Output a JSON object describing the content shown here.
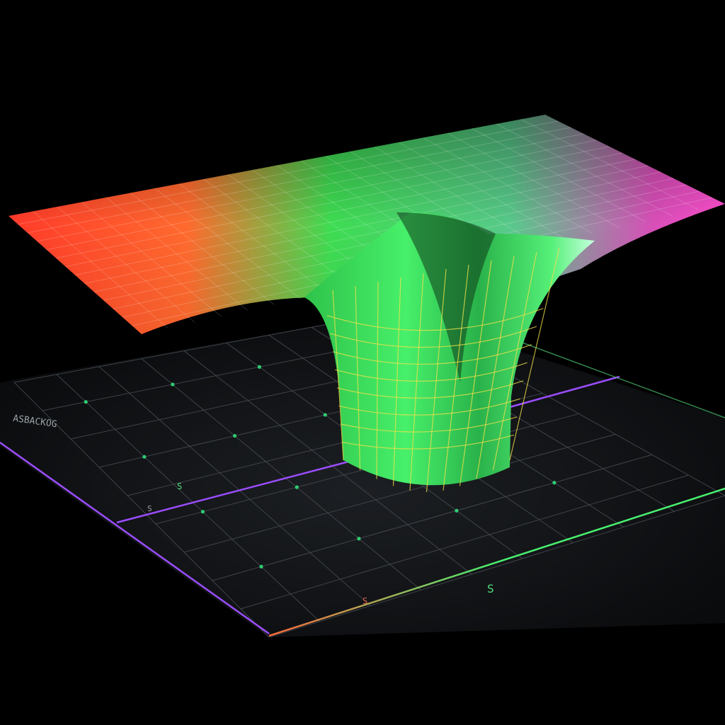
{
  "scene": {
    "labels": [
      {
        "text": "ASBACKOG",
        "color": "#9aa0a6"
      },
      {
        "text": "S",
        "color": "#52e07a"
      },
      {
        "text": "S",
        "color": "#52e07a"
      },
      {
        "text": "S",
        "color": "#e0604a"
      },
      {
        "text": "S",
        "color": "#9aa0a6"
      }
    ],
    "colors": {
      "background": "#000000",
      "floor": "#121417",
      "floor_grid": "#4a4f55",
      "floor_node": "#2ecc71",
      "sheet_left": "#ff4a2e",
      "sheet_mid": "#39e85f",
      "sheet_right": "#e040c8",
      "funnel": "#3ee45c",
      "mesh_line": "#f2e24a",
      "axis_purple": "#9b4dff",
      "axis_gradient_start": "#ff6a3d",
      "axis_gradient_end": "#49f06f"
    }
  }
}
